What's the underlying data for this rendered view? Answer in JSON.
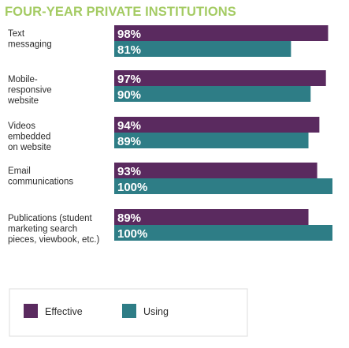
{
  "chart_data": {
    "type": "bar",
    "orientation": "horizontal",
    "title": "FOUR-YEAR PRIVATE INSTITUTIONS",
    "categories": [
      [
        "Text",
        "messaging"
      ],
      [
        "Mobile-",
        "responsive",
        "website"
      ],
      [
        "Videos",
        "embedded",
        "on website"
      ],
      [
        "Email",
        "communications"
      ],
      [
        "Publications (student",
        "marketing search",
        "pieces, viewbook, etc.)"
      ]
    ],
    "series": [
      {
        "name": "Effective",
        "color": "#5a2a5f",
        "values": [
          98,
          97,
          94,
          93,
          89
        ],
        "labels": [
          "98%",
          "97%",
          "94%",
          "93%",
          "89%"
        ]
      },
      {
        "name": "Using",
        "color": "#2e7d86",
        "values": [
          81,
          90,
          89,
          100,
          100
        ],
        "labels": [
          "81%",
          "90%",
          "89%",
          "100%",
          "100%"
        ]
      }
    ],
    "xlim": [
      0,
      100
    ],
    "unit": "%",
    "legend_position": "bottom",
    "grid": false
  }
}
